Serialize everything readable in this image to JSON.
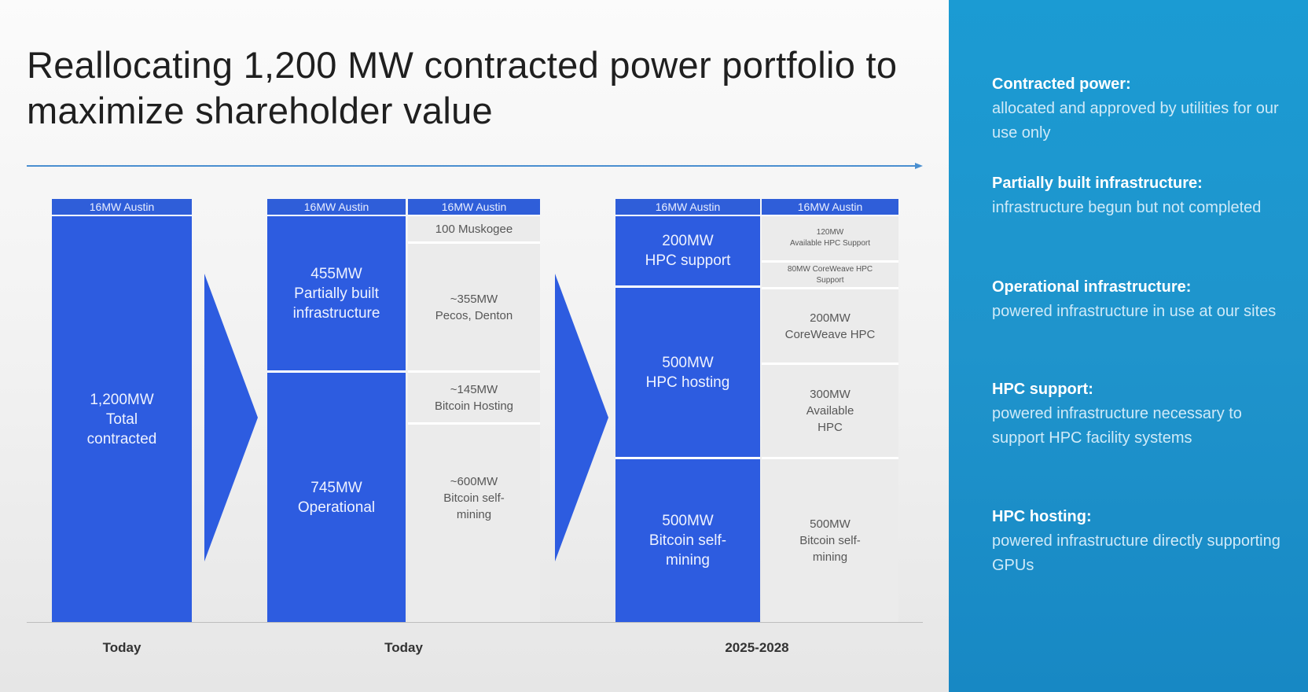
{
  "title": "Reallocating 1,200 MW contracted power portfolio to maximize shareholder value",
  "colors": {
    "bar_blue": "#2d5ce0",
    "bar_grey": "#ebebeb",
    "sidebar_blue": "#1b9bd3"
  },
  "chart_data": {
    "type": "bar",
    "stacked": true,
    "unit": "MW",
    "groups": [
      {
        "label": "Today",
        "columns": [
          {
            "segments": [
              {
                "label": "16MW Austin",
                "value": 16
              },
              {
                "label": "1,200MW Total contracted",
                "value": 1200
              }
            ]
          }
        ]
      },
      {
        "label": "Today",
        "columns": [
          {
            "segments": [
              {
                "label": "16MW Austin",
                "value": 16
              },
              {
                "label": "455MW Partially built infrastructure",
                "value": 455
              },
              {
                "label": "745MW Operational",
                "value": 745
              }
            ]
          },
          {
            "segments": [
              {
                "label": "16MW Austin",
                "value": 16
              },
              {
                "label": "100 Muskogee",
                "value": 100
              },
              {
                "label": "~355MW Pecos, Denton",
                "value": 355
              },
              {
                "label": "~145MW Bitcoin Hosting",
                "value": 145
              },
              {
                "label": "~600MW Bitcoin self-mining",
                "value": 600
              }
            ]
          }
        ]
      },
      {
        "label": "2025-2028",
        "columns": [
          {
            "segments": [
              {
                "label": "16MW Austin",
                "value": 16
              },
              {
                "label": "200MW HPC support",
                "value": 200
              },
              {
                "label": "500MW HPC hosting",
                "value": 500
              },
              {
                "label": "500MW Bitcoin self-mining",
                "value": 500
              }
            ]
          },
          {
            "segments": [
              {
                "label": "16MW Austin",
                "value": 16
              },
              {
                "label": "120MW Available HPC Support",
                "value": 120
              },
              {
                "label": "80MW CoreWeave HPC Support",
                "value": 80
              },
              {
                "label": "200MW CoreWeave HPC",
                "value": 200
              },
              {
                "label": "300MW Available HPC",
                "value": 300
              },
              {
                "label": "500MW Bitcoin self-mining",
                "value": 500
              }
            ]
          }
        ]
      }
    ]
  },
  "chart": {
    "g1": {
      "austin": "16MW Austin",
      "total": [
        "1,200MW",
        "Total",
        "contracted"
      ],
      "label": "Today"
    },
    "g2": {
      "austin_a": "16MW Austin",
      "austin_b": "16MW Austin",
      "partial": [
        "455MW",
        "Partially built",
        "infrastructure"
      ],
      "operational": [
        "745MW",
        "Operational"
      ],
      "muskogee": "100 Muskogee",
      "pecos": [
        "~355MW",
        "Pecos, Denton"
      ],
      "btc_hosting": [
        "~145MW",
        "Bitcoin Hosting"
      ],
      "btc_self": [
        "~600MW",
        "Bitcoin self-",
        "mining"
      ],
      "label": "Today"
    },
    "g3": {
      "austin_a": "16MW Austin",
      "austin_b": "16MW Austin",
      "hpc_support": [
        "200MW",
        "HPC support"
      ],
      "hpc_hosting": [
        "500MW",
        "HPC hosting"
      ],
      "btc_self": [
        "500MW",
        "Bitcoin self-",
        "mining"
      ],
      "avail_support": [
        "120MW",
        "Available HPC Support"
      ],
      "cw_support": [
        "80MW CoreWeave HPC",
        "Support"
      ],
      "cw_hpc": [
        "200MW",
        "CoreWeave HPC"
      ],
      "avail_hpc": [
        "300MW",
        "Available",
        "HPC"
      ],
      "btc_self_r": [
        "500MW",
        "Bitcoin self-",
        "mining"
      ],
      "label": "2025-2028"
    }
  },
  "sidebar": {
    "definitions": [
      {
        "term": "Contracted power",
        "sep": ":",
        "desc": "allocated and approved by utilities for our use only"
      },
      {
        "term": "Partially built infrastructure",
        "sep": ":",
        "desc": "infrastructure begun but not completed"
      },
      {
        "term": "Operational infrastructure:",
        "sep": "",
        "desc": "powered infrastructure in use at our sites"
      },
      {
        "term": "HPC support",
        "sep": ":",
        "desc": "powered infrastructure necessary to support HPC facility systems"
      },
      {
        "term": "HPC hosting",
        "sep": ":",
        "desc": "powered infrastructure directly supporting GPUs"
      }
    ]
  }
}
